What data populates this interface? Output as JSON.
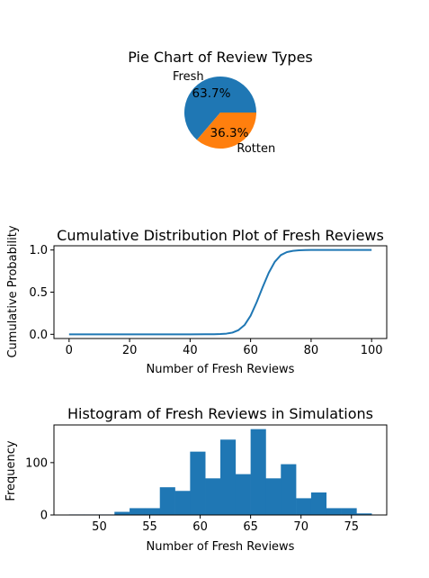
{
  "colors": {
    "blue": "#1f77b4",
    "orange": "#ff7f0e",
    "axis": "#000000",
    "background": "#ffffff"
  },
  "chart_data": [
    {
      "type": "pie",
      "title": "Pie Chart of Review Types",
      "labels": [
        "Fresh",
        "Rotten"
      ],
      "values": [
        63.7,
        36.3
      ],
      "pct_labels": [
        "63.7%",
        "36.3%"
      ],
      "colors": [
        "#1f77b4",
        "#ff7f0e"
      ]
    },
    {
      "type": "line",
      "title": "Cumulative Distribution Plot of Fresh Reviews",
      "xlabel": "Number of Fresh Reviews",
      "ylabel": "Cumulative Probability",
      "xlim": [
        -5,
        105
      ],
      "ylim": [
        -0.05,
        1.05
      ],
      "xticks": [
        0,
        20,
        40,
        60,
        80,
        100
      ],
      "xtick_labels": [
        "0",
        "20",
        "40",
        "60",
        "80",
        "100"
      ],
      "yticks": [
        0,
        0.5,
        1
      ],
      "ytick_labels": [
        "0.0",
        "0.5",
        "1.0"
      ],
      "series": [
        {
          "color": "#1f77b4",
          "x": [
            0,
            40,
            45,
            48,
            50,
            52,
            54,
            56,
            58,
            60,
            62,
            64,
            66,
            68,
            70,
            72,
            74,
            76,
            78,
            80,
            85,
            90,
            100
          ],
          "y": [
            0,
            0,
            0.0003,
            0.001,
            0.003,
            0.008,
            0.02,
            0.05,
            0.11,
            0.22,
            0.38,
            0.56,
            0.73,
            0.86,
            0.94,
            0.975,
            0.99,
            0.997,
            0.999,
            1.0,
            1.0,
            1.0,
            1.0
          ]
        }
      ]
    },
    {
      "type": "bar",
      "subtype": "histogram",
      "title": "Histogram of Fresh Reviews in Simulations",
      "xlabel": "Number of Fresh Reviews",
      "ylabel": "Frequency",
      "xlim": [
        45.5,
        78.5
      ],
      "ylim": [
        0,
        172
      ],
      "xticks": [
        50,
        55,
        60,
        65,
        70,
        75
      ],
      "xtick_labels": [
        "50",
        "55",
        "60",
        "65",
        "70",
        "75"
      ],
      "yticks": [
        0,
        100
      ],
      "ytick_labels": [
        "0",
        "100"
      ],
      "bin_edges": [
        47,
        48.5,
        50,
        51.5,
        53,
        54.5,
        56,
        57.5,
        59,
        60.5,
        62,
        63.5,
        65,
        66.5,
        68,
        69.5,
        71,
        72.5,
        74,
        75.5,
        77
      ],
      "counts": [
        1,
        1,
        1,
        6,
        13,
        13,
        53,
        46,
        121,
        70,
        144,
        78,
        164,
        70,
        97,
        32,
        43,
        13,
        13,
        3
      ],
      "color": "#1f77b4"
    }
  ]
}
